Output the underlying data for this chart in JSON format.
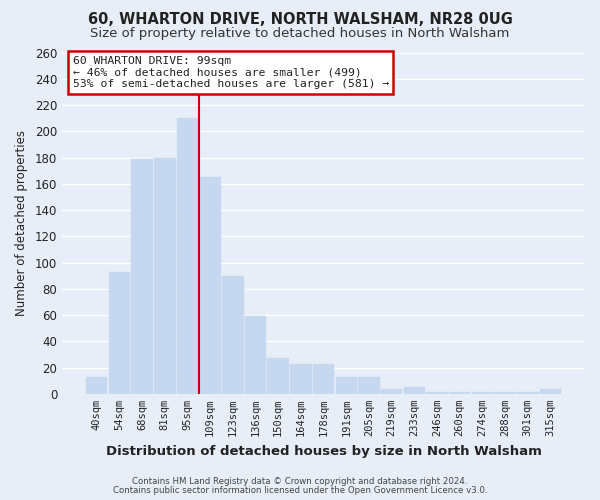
{
  "title": "60, WHARTON DRIVE, NORTH WALSHAM, NR28 0UG",
  "subtitle": "Size of property relative to detached houses in North Walsham",
  "xlabel": "Distribution of detached houses by size in North Walsham",
  "ylabel": "Number of detached properties",
  "footer_line1": "Contains HM Land Registry data © Crown copyright and database right 2024.",
  "footer_line2": "Contains public sector information licensed under the Open Government Licence v3.0.",
  "bar_labels": [
    "40sqm",
    "54sqm",
    "68sqm",
    "81sqm",
    "95sqm",
    "109sqm",
    "123sqm",
    "136sqm",
    "150sqm",
    "164sqm",
    "178sqm",
    "191sqm",
    "205sqm",
    "219sqm",
    "233sqm",
    "246sqm",
    "260sqm",
    "274sqm",
    "288sqm",
    "301sqm",
    "315sqm"
  ],
  "bar_values": [
    13,
    93,
    179,
    180,
    210,
    165,
    90,
    59,
    27,
    23,
    23,
    13,
    13,
    4,
    5,
    1,
    1,
    1,
    1,
    1,
    4
  ],
  "bar_color": "#c5d8f0",
  "vline_color": "#cc0000",
  "vline_bar_index": 4,
  "ylim": [
    0,
    260
  ],
  "yticks": [
    0,
    20,
    40,
    60,
    80,
    100,
    120,
    140,
    160,
    180,
    200,
    220,
    240,
    260
  ],
  "annotation_title": "60 WHARTON DRIVE: 99sqm",
  "annotation_line1": "← 46% of detached houses are smaller (499)",
  "annotation_line2": "53% of semi-detached houses are larger (581) →",
  "annotation_box_color": "#ffffff",
  "annotation_box_edgecolor": "#cc0000",
  "bg_color": "#e8eef8",
  "grid_color": "#ffffff",
  "title_fontsize": 10.5,
  "subtitle_fontsize": 9.5
}
